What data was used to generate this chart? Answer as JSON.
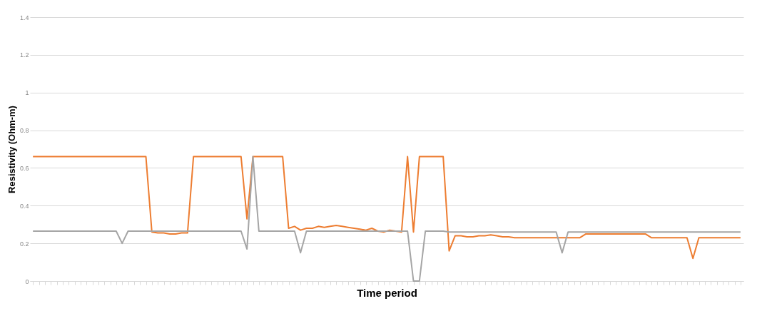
{
  "chart_data": {
    "type": "line",
    "xlabel": "Time period",
    "ylabel": "Resistivity (Ohm-m)",
    "categories": [
      null,
      null,
      null,
      null,
      null,
      null,
      null,
      null,
      null,
      null,
      null,
      null,
      null,
      null,
      null,
      null,
      null,
      null,
      null,
      null,
      null,
      null,
      null,
      null,
      null,
      null,
      null,
      null,
      null,
      null,
      null,
      null,
      null,
      null,
      null,
      null,
      null,
      null,
      null,
      null,
      null,
      null,
      null,
      null,
      null,
      null,
      null,
      null,
      null,
      null,
      null,
      null,
      null,
      null,
      null,
      null,
      null,
      null,
      null,
      null,
      null,
      null,
      null,
      null,
      null,
      null,
      null,
      null,
      null,
      null,
      null,
      null,
      null,
      null,
      null,
      null,
      null,
      null,
      null,
      null,
      null,
      null,
      null,
      null,
      null,
      null,
      null,
      null,
      null,
      null,
      null,
      null,
      null,
      null,
      null,
      null,
      null,
      null,
      null,
      null,
      null,
      null,
      null,
      null,
      null,
      null,
      null,
      null,
      null,
      null,
      null,
      null,
      null,
      null,
      null,
      null,
      null,
      null,
      null,
      null
    ],
    "ylim": [
      0,
      1.4
    ],
    "yticks": [
      0,
      0.2,
      0.4,
      0.6,
      0.8,
      1,
      1.2,
      1.4
    ],
    "grid": "y",
    "tick_labels": "y",
    "line_style": "solid",
    "marker": "none",
    "series": [
      {
        "color": "#ed7d31",
        "values": [
          0.66,
          0.66,
          0.66,
          0.66,
          0.66,
          0.66,
          0.66,
          0.66,
          0.66,
          0.66,
          0.66,
          0.66,
          0.66,
          0.66,
          0.66,
          0.66,
          0.66,
          0.66,
          0.66,
          0.66,
          0.26,
          0.255,
          0.255,
          0.25,
          0.25,
          0.255,
          0.255,
          0.66,
          0.66,
          0.66,
          0.66,
          0.66,
          0.66,
          0.66,
          0.66,
          0.66,
          0.33,
          0.66,
          0.66,
          0.66,
          0.66,
          0.66,
          0.66,
          0.28,
          0.29,
          0.27,
          0.28,
          0.28,
          0.29,
          0.285,
          0.29,
          0.295,
          0.29,
          0.285,
          0.28,
          0.275,
          0.27,
          0.28,
          0.265,
          0.26,
          0.27,
          0.265,
          0.26,
          0.66,
          0.26,
          0.66,
          0.66,
          0.66,
          0.66,
          0.66,
          0.16,
          0.24,
          0.24,
          0.235,
          0.235,
          0.24,
          0.24,
          0.245,
          0.24,
          0.235,
          0.235,
          0.23,
          0.23,
          0.23,
          0.23,
          0.23,
          0.23,
          0.23,
          0.23,
          0.23,
          0.23,
          0.23,
          0.23,
          0.25,
          0.25,
          0.25,
          0.25,
          0.25,
          0.25,
          0.25,
          0.25,
          0.25,
          0.25,
          0.25,
          0.23,
          0.23,
          0.23,
          0.23,
          0.23,
          0.23,
          0.23,
          0.12,
          0.23,
          0.23,
          0.23,
          0.23,
          0.23,
          0.23,
          0.23,
          0.23
        ]
      },
      {
        "color": "#a5a5a5",
        "values": [
          0.265,
          0.265,
          0.265,
          0.265,
          0.265,
          0.265,
          0.265,
          0.265,
          0.265,
          0.265,
          0.265,
          0.265,
          0.265,
          0.265,
          0.265,
          0.2,
          0.265,
          0.265,
          0.265,
          0.265,
          0.265,
          0.265,
          0.265,
          0.265,
          0.265,
          0.265,
          0.265,
          0.265,
          0.265,
          0.265,
          0.265,
          0.265,
          0.265,
          0.265,
          0.265,
          0.265,
          0.17,
          0.66,
          0.265,
          0.265,
          0.265,
          0.265,
          0.265,
          0.265,
          0.265,
          0.15,
          0.265,
          0.265,
          0.265,
          0.265,
          0.265,
          0.265,
          0.265,
          0.265,
          0.265,
          0.265,
          0.265,
          0.265,
          0.265,
          0.265,
          0.265,
          0.265,
          0.265,
          0.265,
          0,
          0,
          0.265,
          0.265,
          0.265,
          0.265,
          0.26,
          0.26,
          0.26,
          0.26,
          0.26,
          0.26,
          0.26,
          0.26,
          0.26,
          0.26,
          0.26,
          0.26,
          0.26,
          0.26,
          0.26,
          0.26,
          0.26,
          0.26,
          0.26,
          0.15,
          0.26,
          0.26,
          0.26,
          0.26,
          0.26,
          0.26,
          0.26,
          0.26,
          0.26,
          0.26,
          0.26,
          0.26,
          0.26,
          0.26,
          0.26,
          0.26,
          0.26,
          0.26,
          0.26,
          0.26,
          0.26,
          0.26,
          0.26,
          0.26,
          0.26,
          0.26,
          0.26,
          0.26,
          0.26,
          0.26
        ]
      }
    ]
  }
}
